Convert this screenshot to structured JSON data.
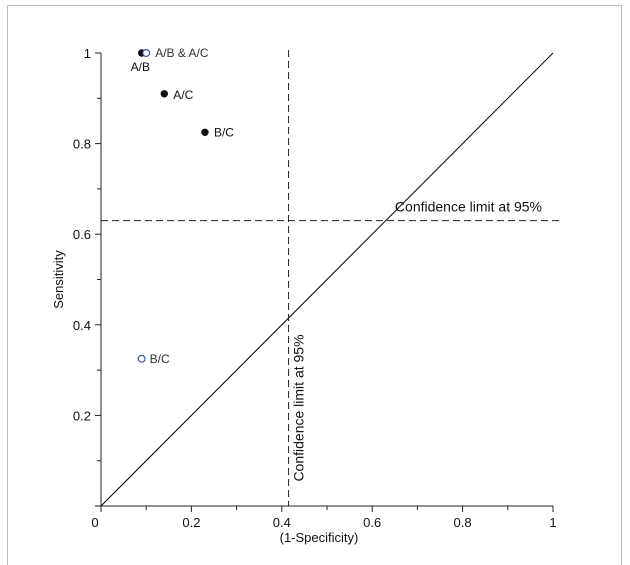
{
  "chart_data": {
    "type": "scatter",
    "xlabel": "(1-Specificity)",
    "ylabel": "Sensitivity",
    "xlim": [
      0,
      1
    ],
    "ylim": [
      0,
      1
    ],
    "xticks": [
      0,
      0.2,
      0.4,
      0.6,
      0.8,
      1
    ],
    "yticks": [
      0,
      0.2,
      0.4,
      0.6,
      0.8,
      1
    ],
    "xtick_labels": [
      "0",
      "0.2",
      "0.4",
      "0.6",
      "0.8",
      "1"
    ],
    "ytick_labels": [
      "",
      "0.2",
      "0.4",
      "0.6",
      "0.8",
      "1"
    ],
    "grid": false,
    "series": [
      {
        "marker": "filled",
        "color": "#111111",
        "points": [
          {
            "x": 0.09,
            "y": 1.0,
            "label": "A/B"
          },
          {
            "x": 0.14,
            "y": 0.91,
            "label": "A/C"
          },
          {
            "x": 0.23,
            "y": 0.825,
            "label": "B/C"
          }
        ]
      },
      {
        "marker": "open",
        "color": "#3a5a9a",
        "points": [
          {
            "x": 0.1,
            "y": 1.0,
            "label": "A/B & A/C"
          },
          {
            "x": 0.09,
            "y": 0.325,
            "label": "B/C"
          }
        ]
      }
    ],
    "reference_line": {
      "from": [
        0,
        0
      ],
      "to": [
        1,
        1
      ]
    },
    "confidence_lines": [
      {
        "orientation": "horizontal",
        "value": 0.63,
        "label": "Confidence limit at 95%"
      },
      {
        "orientation": "vertical",
        "value": 0.415,
        "label": "Confidence limit at 95%"
      }
    ]
  }
}
